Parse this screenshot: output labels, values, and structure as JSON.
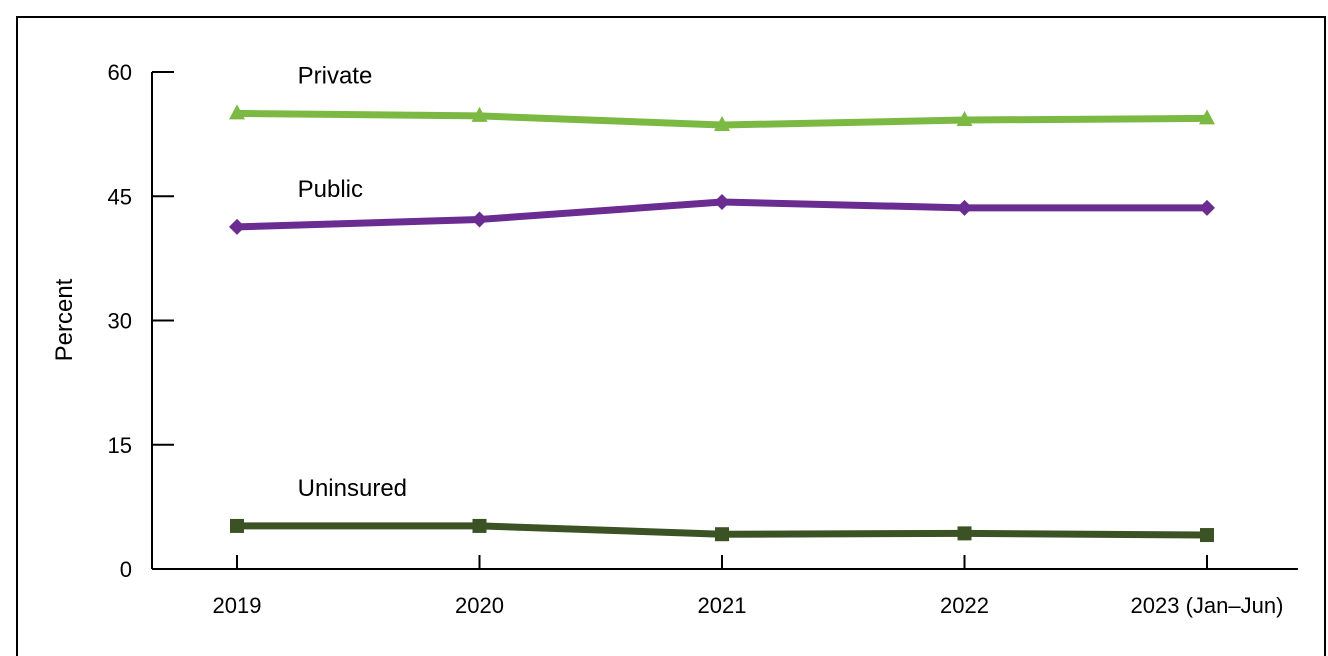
{
  "chart_data": {
    "type": "line",
    "title": "",
    "xlabel": "",
    "ylabel": "Percent",
    "categories": [
      "2019",
      "2020",
      "2021",
      "2022",
      "2023 (Jan–Jun)"
    ],
    "ylim": [
      0,
      60
    ],
    "yticks": [
      0,
      15,
      30,
      45,
      60
    ],
    "grid": false,
    "legend": "none (series labeled directly on plot)",
    "series": [
      {
        "name": "Private",
        "values": [
          55.0,
          54.7,
          53.6,
          54.2,
          54.4
        ],
        "color": "#7cb943",
        "marker": "triangle",
        "label_at_category": 0.25
      },
      {
        "name": "Public",
        "values": [
          41.3,
          42.2,
          44.3,
          43.6,
          43.6
        ],
        "color": "#6a2c91",
        "marker": "diamond",
        "label_at_category": 0.25
      },
      {
        "name": "Uninsured",
        "values": [
          5.2,
          5.2,
          4.2,
          4.3,
          4.1
        ],
        "color": "#3b5225",
        "marker": "square",
        "label_at_category": 0.25
      }
    ]
  }
}
